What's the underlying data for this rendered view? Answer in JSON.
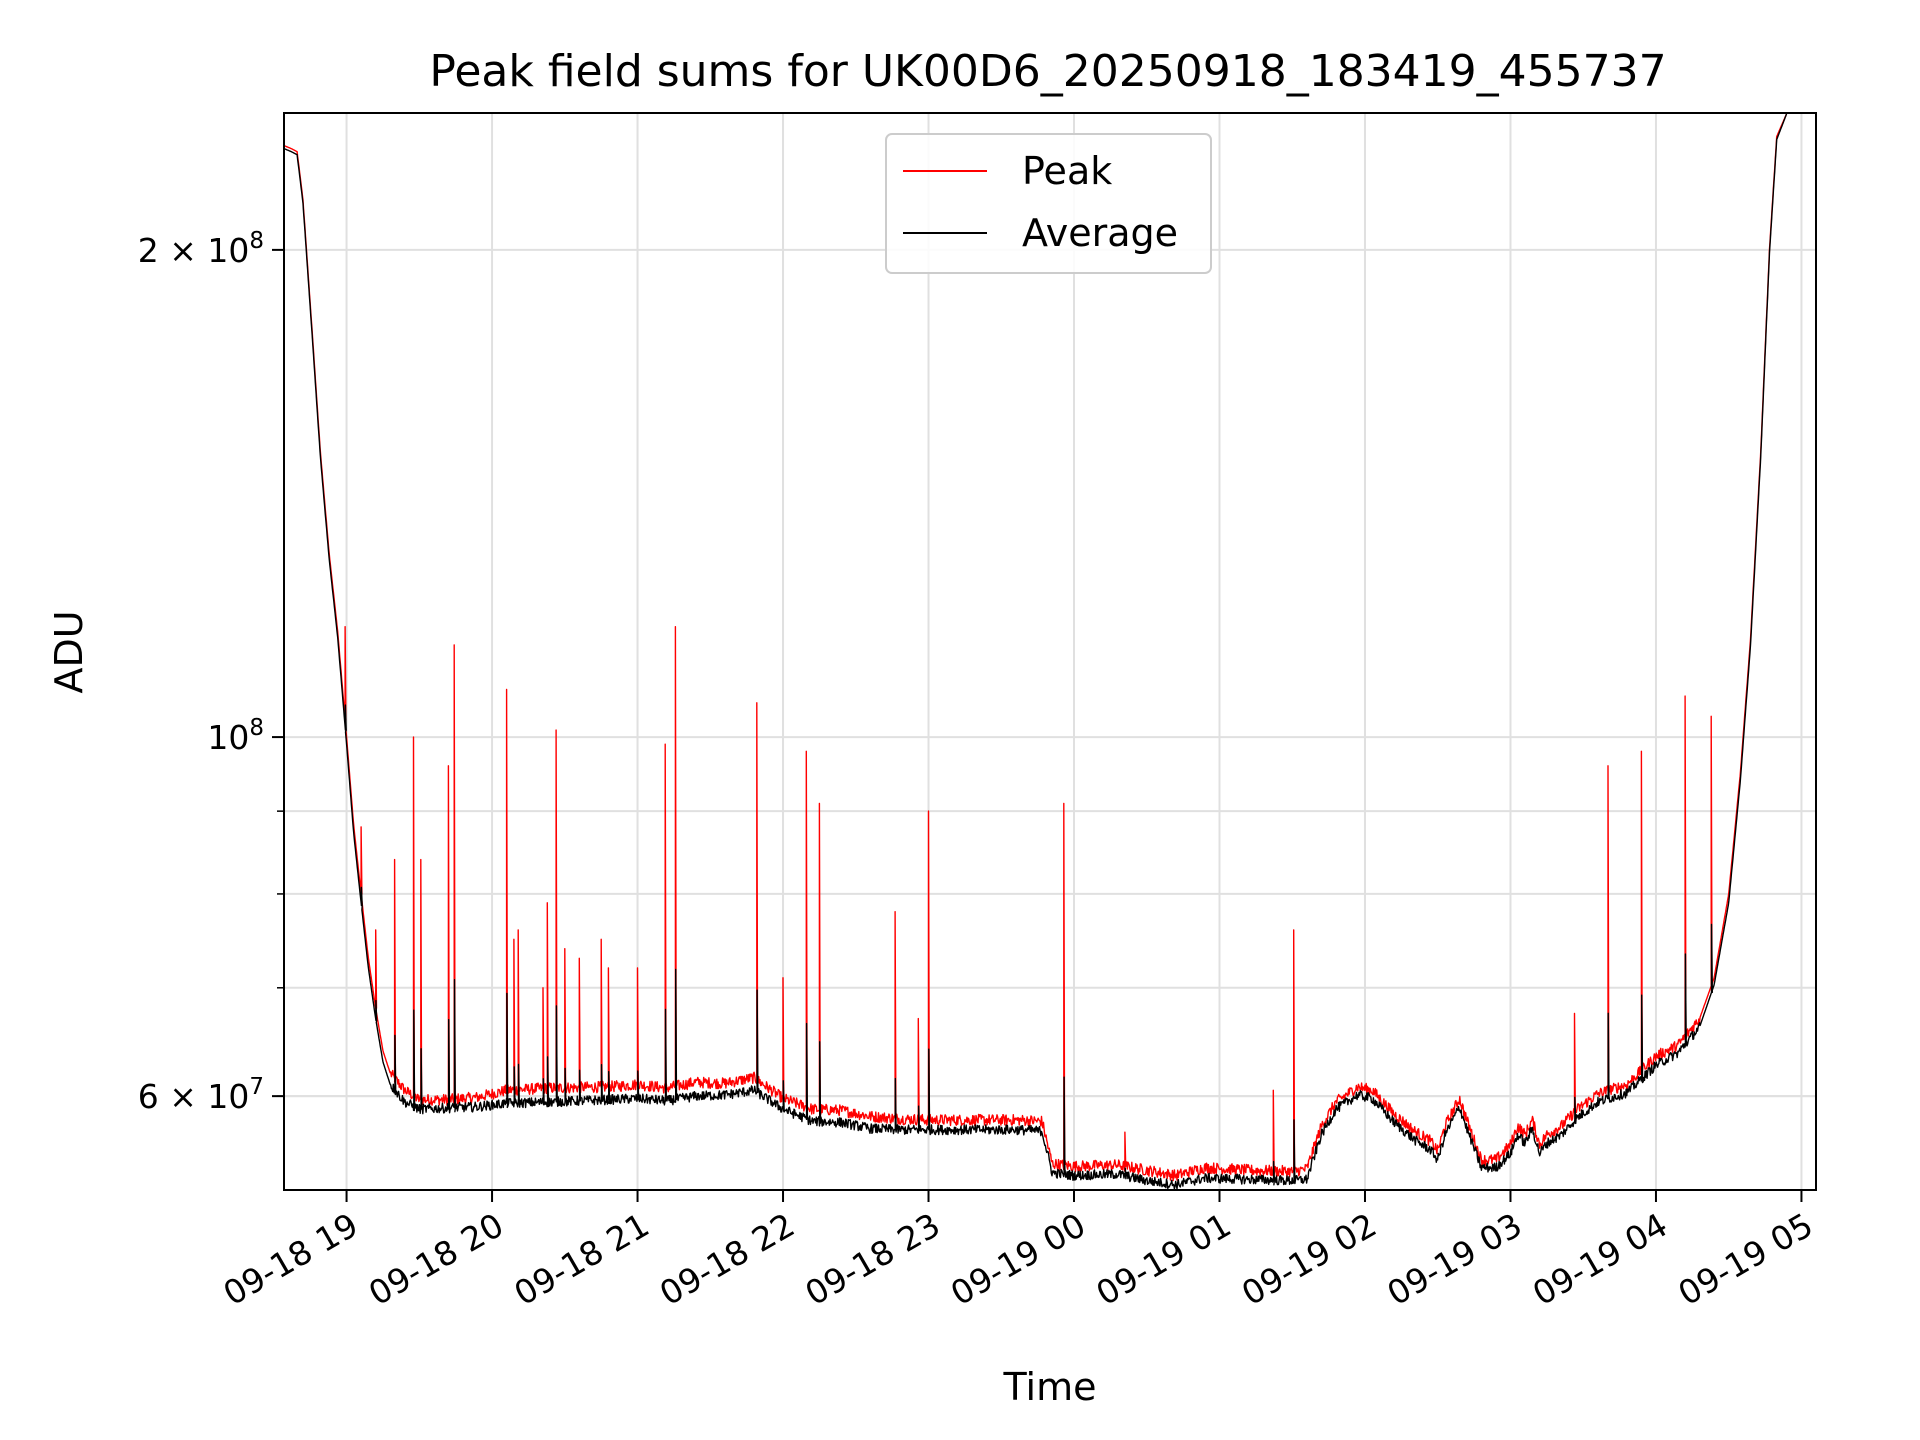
{
  "chart_data": {
    "type": "line",
    "title": "Peak field sums for UK00D6_20250918_183419_455737",
    "xlabel": "Time",
    "ylabel": "ADU",
    "yscale": "log",
    "xlim_hours": [
      18.57,
      29.1
    ],
    "ylim": [
      52500000,
      243000000
    ],
    "grid": true,
    "legend_position": "top-center",
    "x_ticks": [
      {
        "hour": 19,
        "label": "09-18 19"
      },
      {
        "hour": 20,
        "label": "09-18 20"
      },
      {
        "hour": 21,
        "label": "09-18 21"
      },
      {
        "hour": 22,
        "label": "09-18 22"
      },
      {
        "hour": 23,
        "label": "09-18 23"
      },
      {
        "hour": 24,
        "label": "09-19 00"
      },
      {
        "hour": 25,
        "label": "09-19 01"
      },
      {
        "hour": 26,
        "label": "09-19 02"
      },
      {
        "hour": 27,
        "label": "09-19 03"
      },
      {
        "hour": 28,
        "label": "09-19 04"
      },
      {
        "hour": 29,
        "label": "09-19 05"
      }
    ],
    "y_major_ticks": [
      {
        "value": 60000000,
        "base": "6 × 10",
        "exp": "7"
      },
      {
        "value": 100000000,
        "base": "10",
        "exp": "8"
      },
      {
        "value": 200000000,
        "base": "2 × 10",
        "exp": "8"
      }
    ],
    "y_minor_ticks": [
      60000000,
      70000000,
      80000000,
      90000000
    ],
    "series": [
      {
        "name": "Peak",
        "color": "#ff0000",
        "points": [
          [
            18.57,
            232000000
          ],
          [
            18.62,
            231000000
          ],
          [
            18.66,
            230000000
          ],
          [
            18.7,
            215000000
          ],
          [
            18.76,
            180000000
          ],
          [
            18.82,
            150000000
          ],
          [
            18.88,
            130000000
          ],
          [
            18.94,
            116000000
          ],
          [
            19.0,
            100000000
          ],
          [
            19.05,
            88000000
          ],
          [
            19.1,
            80000000
          ],
          [
            19.15,
            73000000
          ],
          [
            19.2,
            68000000
          ],
          [
            19.25,
            64000000
          ],
          [
            19.3,
            62000000
          ],
          [
            19.4,
            60500000
          ],
          [
            19.5,
            59700000
          ],
          [
            19.7,
            59700000
          ],
          [
            19.9,
            59900000
          ],
          [
            20.1,
            60500000
          ],
          [
            20.4,
            60700000
          ],
          [
            20.8,
            60800000
          ],
          [
            21.0,
            61000000
          ],
          [
            21.2,
            60700000
          ],
          [
            21.4,
            61200000
          ],
          [
            21.6,
            61100000
          ],
          [
            21.8,
            61600000
          ],
          [
            22.0,
            59800000
          ],
          [
            22.2,
            58900000
          ],
          [
            22.4,
            58800000
          ],
          [
            22.6,
            58300000
          ],
          [
            22.8,
            58100000
          ],
          [
            23.0,
            58000000
          ],
          [
            23.3,
            58000000
          ],
          [
            23.6,
            58000000
          ],
          [
            23.78,
            57900000
          ],
          [
            23.85,
            54500000
          ],
          [
            24.0,
            54300000
          ],
          [
            24.3,
            54400000
          ],
          [
            24.5,
            54000000
          ],
          [
            24.7,
            53600000
          ],
          [
            24.9,
            54200000
          ],
          [
            25.2,
            54000000
          ],
          [
            25.5,
            53900000
          ],
          [
            25.6,
            54100000
          ],
          [
            25.7,
            57500000
          ],
          [
            25.8,
            59500000
          ],
          [
            25.95,
            60800000
          ],
          [
            26.05,
            60500000
          ],
          [
            26.2,
            58500000
          ],
          [
            26.35,
            57000000
          ],
          [
            26.45,
            56300000
          ],
          [
            26.5,
            55500000
          ],
          [
            26.55,
            57500000
          ],
          [
            26.65,
            59800000
          ],
          [
            26.7,
            58000000
          ],
          [
            26.8,
            54800000
          ],
          [
            26.9,
            54800000
          ],
          [
            27.0,
            56000000
          ],
          [
            27.05,
            57500000
          ],
          [
            27.1,
            56800000
          ],
          [
            27.15,
            58000000
          ],
          [
            27.2,
            56000000
          ],
          [
            27.25,
            56800000
          ],
          [
            27.35,
            57500000
          ],
          [
            27.45,
            58800000
          ],
          [
            27.6,
            60200000
          ],
          [
            27.8,
            61000000
          ],
          [
            28.0,
            63500000
          ],
          [
            28.15,
            64500000
          ],
          [
            28.3,
            67000000
          ],
          [
            28.4,
            71000000
          ],
          [
            28.5,
            80000000
          ],
          [
            28.58,
            95000000
          ],
          [
            28.65,
            115000000
          ],
          [
            28.72,
            150000000
          ],
          [
            28.78,
            200000000
          ],
          [
            28.83,
            235000000
          ],
          [
            28.9,
            243000000
          ]
        ]
      },
      {
        "name": "Average",
        "color": "#000000",
        "points": [
          [
            18.57,
            231000000
          ],
          [
            18.62,
            230000000
          ],
          [
            18.66,
            229000000
          ],
          [
            18.7,
            214000000
          ],
          [
            18.76,
            179000000
          ],
          [
            18.82,
            149000000
          ],
          [
            18.88,
            129000000
          ],
          [
            18.94,
            115000000
          ],
          [
            19.0,
            99000000
          ],
          [
            19.05,
            87000000
          ],
          [
            19.1,
            79000000
          ],
          [
            19.15,
            72000000
          ],
          [
            19.2,
            67000000
          ],
          [
            19.25,
            63000000
          ],
          [
            19.3,
            61000000
          ],
          [
            19.4,
            59500000
          ],
          [
            19.5,
            58900000
          ],
          [
            19.7,
            59000000
          ],
          [
            19.9,
            59100000
          ],
          [
            20.1,
            59400000
          ],
          [
            20.4,
            59500000
          ],
          [
            20.8,
            59700000
          ],
          [
            21.0,
            59800000
          ],
          [
            21.2,
            59600000
          ],
          [
            21.4,
            60000000
          ],
          [
            21.6,
            60100000
          ],
          [
            21.8,
            60500000
          ],
          [
            22.0,
            58900000
          ],
          [
            22.2,
            57900000
          ],
          [
            22.4,
            57800000
          ],
          [
            22.6,
            57300000
          ],
          [
            22.8,
            57200000
          ],
          [
            23.0,
            57200000
          ],
          [
            23.3,
            57200000
          ],
          [
            23.6,
            57200000
          ],
          [
            23.78,
            57100000
          ],
          [
            23.85,
            53800000
          ],
          [
            24.0,
            53600000
          ],
          [
            24.3,
            53700000
          ],
          [
            24.5,
            53200000
          ],
          [
            24.7,
            52900000
          ],
          [
            24.9,
            53400000
          ],
          [
            25.2,
            53300000
          ],
          [
            25.5,
            53200000
          ],
          [
            25.6,
            53300000
          ],
          [
            25.7,
            56800000
          ],
          [
            25.8,
            58900000
          ],
          [
            25.95,
            60100000
          ],
          [
            26.05,
            59800000
          ],
          [
            26.2,
            57800000
          ],
          [
            26.35,
            56300000
          ],
          [
            26.45,
            55600000
          ],
          [
            26.5,
            54800000
          ],
          [
            26.55,
            56800000
          ],
          [
            26.65,
            59100000
          ],
          [
            26.7,
            57300000
          ],
          [
            26.8,
            54200000
          ],
          [
            26.9,
            54200000
          ],
          [
            27.0,
            55300000
          ],
          [
            27.05,
            56800000
          ],
          [
            27.1,
            56100000
          ],
          [
            27.15,
            57300000
          ],
          [
            27.2,
            55300000
          ],
          [
            27.25,
            56100000
          ],
          [
            27.35,
            56800000
          ],
          [
            27.45,
            58100000
          ],
          [
            27.6,
            59500000
          ],
          [
            27.8,
            60300000
          ],
          [
            28.0,
            62700000
          ],
          [
            28.15,
            63800000
          ],
          [
            28.3,
            66200000
          ],
          [
            28.4,
            70300000
          ],
          [
            28.5,
            79000000
          ],
          [
            28.58,
            94000000
          ],
          [
            28.65,
            114000000
          ],
          [
            28.72,
            149000000
          ],
          [
            28.78,
            199000000
          ],
          [
            28.83,
            234000000
          ],
          [
            28.9,
            243000000
          ]
        ]
      }
    ],
    "peak_spikes": [
      [
        18.99,
        117000000
      ],
      [
        19.1,
        88000000
      ],
      [
        19.2,
        76000000
      ],
      [
        19.33,
        84000000
      ],
      [
        19.46,
        100000000
      ],
      [
        19.51,
        84000000
      ],
      [
        19.7,
        96000000
      ],
      [
        19.74,
        114000000
      ],
      [
        20.1,
        107000000
      ],
      [
        20.15,
        75000000
      ],
      [
        20.18,
        76000000
      ],
      [
        20.35,
        70000000
      ],
      [
        20.38,
        79000000
      ],
      [
        20.44,
        101000000
      ],
      [
        20.5,
        74000000
      ],
      [
        20.6,
        73000000
      ],
      [
        20.75,
        75000000
      ],
      [
        20.8,
        72000000
      ],
      [
        21.0,
        72000000
      ],
      [
        21.19,
        99000000
      ],
      [
        21.26,
        117000000
      ],
      [
        21.82,
        105000000
      ],
      [
        22.0,
        71000000
      ],
      [
        22.16,
        98000000
      ],
      [
        22.25,
        91000000
      ],
      [
        22.77,
        78000000
      ],
      [
        22.93,
        67000000
      ],
      [
        23.0,
        90000000
      ],
      [
        23.93,
        91000000
      ],
      [
        24.35,
        57000000
      ],
      [
        25.37,
        60500000
      ],
      [
        25.51,
        76000000
      ],
      [
        27.44,
        67500000
      ],
      [
        27.67,
        96000000
      ],
      [
        27.9,
        98000000
      ],
      [
        28.2,
        106000000
      ],
      [
        28.38,
        103000000
      ]
    ]
  }
}
